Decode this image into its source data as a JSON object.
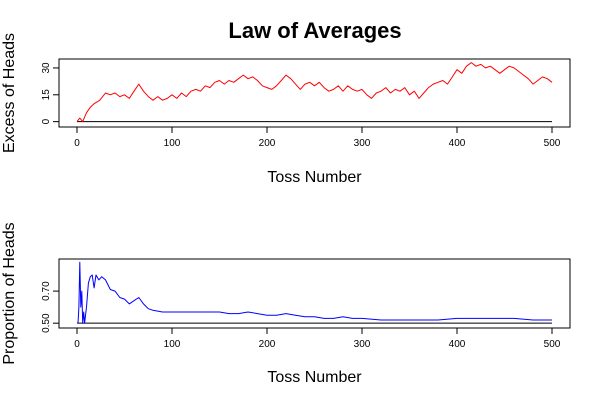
{
  "figure": {
    "title": "Law of Averages"
  },
  "chart_data": [
    {
      "type": "line",
      "xlabel": "Toss Number",
      "ylabel": "Excess of Heads",
      "xlim": [
        0,
        500
      ],
      "ylim": [
        -3,
        35
      ],
      "xticks": [
        0,
        100,
        200,
        300,
        400,
        500
      ],
      "yticks": [
        0,
        15,
        30
      ],
      "reference_line": 0,
      "grid": false,
      "line_color": "#ff0000",
      "series": [
        {
          "x": [
            0,
            3,
            6,
            10,
            14,
            18,
            24,
            30,
            35,
            40,
            45,
            50,
            55,
            60,
            65,
            70,
            75,
            80,
            85,
            90,
            95,
            100,
            105,
            110,
            115,
            120,
            125,
            130,
            135,
            140,
            145,
            150,
            155,
            160,
            165,
            170,
            175,
            180,
            185,
            190,
            195,
            200,
            205,
            210,
            215,
            220,
            225,
            230,
            235,
            240,
            245,
            250,
            255,
            260,
            265,
            270,
            275,
            280,
            285,
            290,
            295,
            300,
            305,
            310,
            315,
            320,
            325,
            330,
            335,
            340,
            345,
            350,
            355,
            360,
            365,
            370,
            375,
            380,
            385,
            390,
            395,
            400,
            405,
            410,
            415,
            420,
            425,
            430,
            435,
            440,
            445,
            450,
            455,
            460,
            465,
            470,
            475,
            480,
            485,
            490,
            495,
            500
          ],
          "y": [
            0,
            2,
            0,
            5,
            8,
            10,
            12,
            16,
            15,
            16,
            14,
            15,
            13,
            17,
            21,
            17,
            14,
            12,
            14,
            12,
            13,
            15,
            13,
            16,
            14,
            17,
            18,
            17,
            20,
            19,
            22,
            23,
            21,
            23,
            22,
            24,
            26,
            24,
            25,
            23,
            20,
            19,
            18,
            20,
            23,
            26,
            24,
            21,
            18,
            21,
            22,
            20,
            22,
            19,
            17,
            18,
            20,
            17,
            20,
            18,
            17,
            18,
            15,
            13,
            16,
            17,
            19,
            16,
            18,
            17,
            19,
            15,
            17,
            13,
            16,
            19,
            21,
            22,
            23,
            21,
            25,
            29,
            27,
            31,
            33,
            31,
            32,
            30,
            31,
            29,
            27,
            29,
            31,
            30,
            28,
            26,
            24,
            21,
            23,
            25,
            24,
            22
          ]
        }
      ]
    },
    {
      "type": "line",
      "xlabel": "Toss Number",
      "ylabel": "Proportion of Heads",
      "xlim": [
        0,
        500
      ],
      "ylim": [
        0.47,
        0.9
      ],
      "xticks": [
        0,
        100,
        200,
        300,
        400,
        500
      ],
      "yticks": [
        0.5,
        0.7
      ],
      "ytick_labels": [
        "0.50",
        "0.70"
      ],
      "reference_line": 0.5,
      "grid": false,
      "line_color": "#0000ff",
      "series": [
        {
          "x": [
            1,
            2,
            3,
            4,
            5,
            6,
            7,
            8,
            10,
            12,
            14,
            16,
            18,
            20,
            23,
            26,
            30,
            35,
            40,
            45,
            50,
            55,
            60,
            65,
            70,
            75,
            80,
            90,
            100,
            110,
            120,
            130,
            140,
            150,
            160,
            170,
            180,
            190,
            200,
            210,
            220,
            230,
            240,
            250,
            260,
            270,
            280,
            290,
            300,
            320,
            340,
            360,
            380,
            400,
            420,
            440,
            460,
            480,
            500
          ],
          "y": [
            0.5,
            0.6,
            0.88,
            0.6,
            0.7,
            0.5,
            0.57,
            0.5,
            0.6,
            0.75,
            0.79,
            0.8,
            0.72,
            0.8,
            0.77,
            0.79,
            0.77,
            0.71,
            0.7,
            0.66,
            0.65,
            0.62,
            0.64,
            0.66,
            0.62,
            0.59,
            0.58,
            0.57,
            0.57,
            0.57,
            0.57,
            0.57,
            0.57,
            0.57,
            0.56,
            0.56,
            0.57,
            0.56,
            0.55,
            0.55,
            0.56,
            0.55,
            0.54,
            0.54,
            0.53,
            0.53,
            0.54,
            0.53,
            0.53,
            0.52,
            0.52,
            0.52,
            0.52,
            0.53,
            0.53,
            0.53,
            0.53,
            0.52,
            0.52
          ]
        }
      ]
    }
  ]
}
